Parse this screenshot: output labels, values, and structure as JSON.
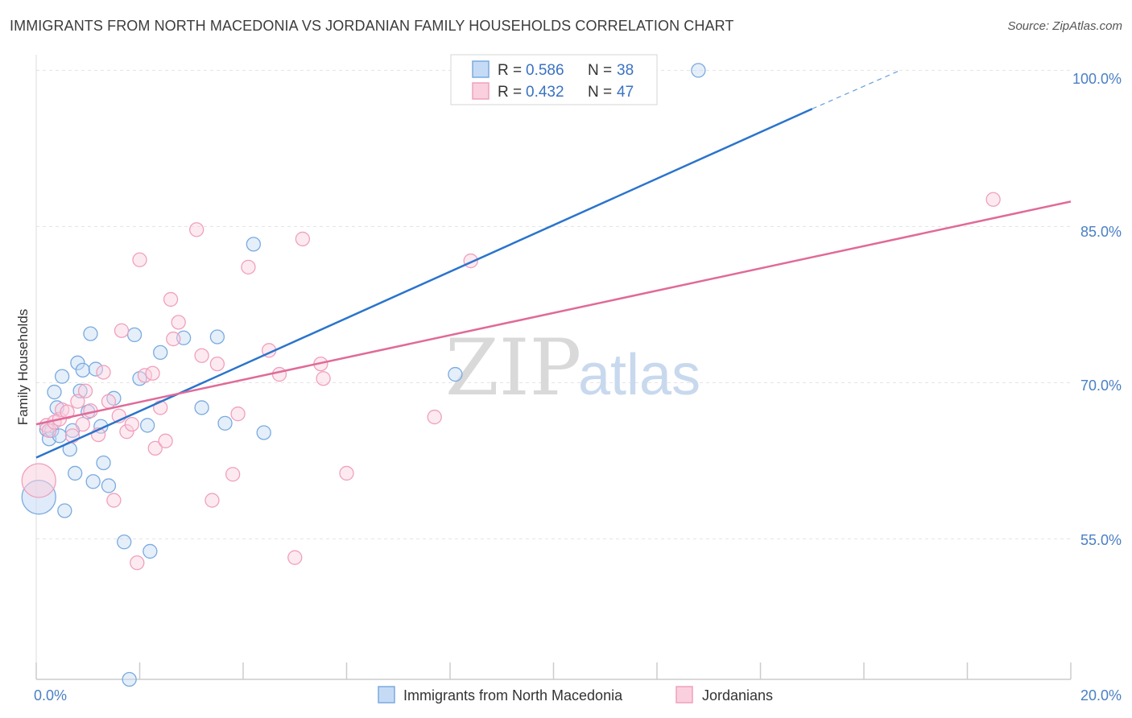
{
  "chart_data": {
    "type": "scatter",
    "title": "IMMIGRANTS FROM NORTH MACEDONIA VS JORDANIAN FAMILY HOUSEHOLDS CORRELATION CHART",
    "source": "Source: ZipAtlas.com",
    "ylabel": "Family Households",
    "xlim": [
      0,
      20
    ],
    "ylim": [
      41.5,
      101.5
    ],
    "x_tick_labels": [
      "0.0%",
      "20.0%"
    ],
    "y_ticks": [
      55,
      70,
      85,
      100
    ],
    "y_tick_labels": [
      "55.0%",
      "70.0%",
      "85.0%",
      "100.0%"
    ],
    "watermark": {
      "zip": "ZIP",
      "atlas": "atlas"
    },
    "legend": [
      {
        "r_label": "R =",
        "r_value": "0.586",
        "n_label": "N =",
        "n_value": "38"
      },
      {
        "r_label": "R =",
        "r_value": "0.432",
        "n_label": "N =",
        "n_value": "47"
      }
    ],
    "series": [
      {
        "name": "Immigrants from North Macedonia",
        "color": "#7aaae0",
        "fill": "#c5dbf5",
        "line_color": "#2a74cc",
        "trend": {
          "x0": 0,
          "y0": 62.8,
          "x1": 15.0,
          "y1": 96.3,
          "dash_x1": 16.7,
          "dash_y1": 100.0
        },
        "points": [
          {
            "x": 0.05,
            "y": 59.0,
            "big": true
          },
          {
            "x": 0.2,
            "y": 65.5
          },
          {
            "x": 0.25,
            "y": 64.6
          },
          {
            "x": 0.3,
            "y": 65.4
          },
          {
            "x": 0.35,
            "y": 69.1
          },
          {
            "x": 0.4,
            "y": 67.6
          },
          {
            "x": 0.45,
            "y": 64.9
          },
          {
            "x": 0.5,
            "y": 70.6
          },
          {
            "x": 0.55,
            "y": 57.7
          },
          {
            "x": 0.65,
            "y": 63.6
          },
          {
            "x": 0.7,
            "y": 65.4
          },
          {
            "x": 0.75,
            "y": 61.3
          },
          {
            "x": 0.8,
            "y": 71.9
          },
          {
            "x": 0.85,
            "y": 69.2
          },
          {
            "x": 0.9,
            "y": 71.2
          },
          {
            "x": 1.0,
            "y": 67.2
          },
          {
            "x": 1.05,
            "y": 74.7
          },
          {
            "x": 1.1,
            "y": 60.5
          },
          {
            "x": 1.15,
            "y": 71.3
          },
          {
            "x": 1.25,
            "y": 65.8
          },
          {
            "x": 1.3,
            "y": 62.3
          },
          {
            "x": 1.4,
            "y": 60.1
          },
          {
            "x": 1.5,
            "y": 68.5
          },
          {
            "x": 1.7,
            "y": 54.7
          },
          {
            "x": 1.8,
            "y": 41.5
          },
          {
            "x": 1.9,
            "y": 74.6
          },
          {
            "x": 2.0,
            "y": 70.4
          },
          {
            "x": 2.15,
            "y": 65.9
          },
          {
            "x": 2.2,
            "y": 53.8
          },
          {
            "x": 2.4,
            "y": 72.9
          },
          {
            "x": 2.85,
            "y": 74.3
          },
          {
            "x": 3.2,
            "y": 67.6
          },
          {
            "x": 3.5,
            "y": 74.4
          },
          {
            "x": 3.65,
            "y": 66.1
          },
          {
            "x": 4.2,
            "y": 83.3
          },
          {
            "x": 4.4,
            "y": 65.2
          },
          {
            "x": 8.1,
            "y": 70.8
          },
          {
            "x": 12.8,
            "y": 100.0
          }
        ]
      },
      {
        "name": "Jordanians",
        "color": "#f0a0bc",
        "fill": "#fad0df",
        "line_color": "#e06a98",
        "trend": {
          "x0": 0,
          "y0": 66.0,
          "x1": 20.0,
          "y1": 87.4
        },
        "points": [
          {
            "x": 0.05,
            "y": 60.6,
            "big": true
          },
          {
            "x": 0.2,
            "y": 65.9
          },
          {
            "x": 0.25,
            "y": 65.4
          },
          {
            "x": 0.35,
            "y": 66.2
          },
          {
            "x": 0.45,
            "y": 66.5
          },
          {
            "x": 0.5,
            "y": 67.4
          },
          {
            "x": 0.6,
            "y": 67.2
          },
          {
            "x": 0.7,
            "y": 64.9
          },
          {
            "x": 0.8,
            "y": 68.2
          },
          {
            "x": 0.9,
            "y": 66.0
          },
          {
            "x": 0.95,
            "y": 69.2
          },
          {
            "x": 1.05,
            "y": 67.3
          },
          {
            "x": 1.2,
            "y": 65.0
          },
          {
            "x": 1.3,
            "y": 71.0
          },
          {
            "x": 1.4,
            "y": 68.2
          },
          {
            "x": 1.5,
            "y": 58.7
          },
          {
            "x": 1.6,
            "y": 66.8
          },
          {
            "x": 1.65,
            "y": 75.0
          },
          {
            "x": 1.75,
            "y": 65.3
          },
          {
            "x": 1.85,
            "y": 66.0
          },
          {
            "x": 1.95,
            "y": 52.7
          },
          {
            "x": 2.0,
            "y": 81.8
          },
          {
            "x": 2.1,
            "y": 70.7
          },
          {
            "x": 2.25,
            "y": 70.9
          },
          {
            "x": 2.3,
            "y": 63.7
          },
          {
            "x": 2.4,
            "y": 67.6
          },
          {
            "x": 2.5,
            "y": 64.4
          },
          {
            "x": 2.6,
            "y": 78.0
          },
          {
            "x": 2.65,
            "y": 74.2
          },
          {
            "x": 2.75,
            "y": 75.8
          },
          {
            "x": 3.1,
            "y": 84.7
          },
          {
            "x": 3.2,
            "y": 72.6
          },
          {
            "x": 3.4,
            "y": 58.7
          },
          {
            "x": 3.5,
            "y": 71.8
          },
          {
            "x": 3.8,
            "y": 61.2
          },
          {
            "x": 3.9,
            "y": 67.0
          },
          {
            "x": 4.1,
            "y": 81.1
          },
          {
            "x": 4.5,
            "y": 73.1
          },
          {
            "x": 4.7,
            "y": 70.8
          },
          {
            "x": 5.0,
            "y": 53.2
          },
          {
            "x": 5.15,
            "y": 83.8
          },
          {
            "x": 5.5,
            "y": 71.8
          },
          {
            "x": 5.55,
            "y": 70.4
          },
          {
            "x": 6.0,
            "y": 61.3
          },
          {
            "x": 7.7,
            "y": 66.7
          },
          {
            "x": 8.4,
            "y": 81.7
          },
          {
            "x": 18.5,
            "y": 87.6
          }
        ]
      }
    ]
  }
}
